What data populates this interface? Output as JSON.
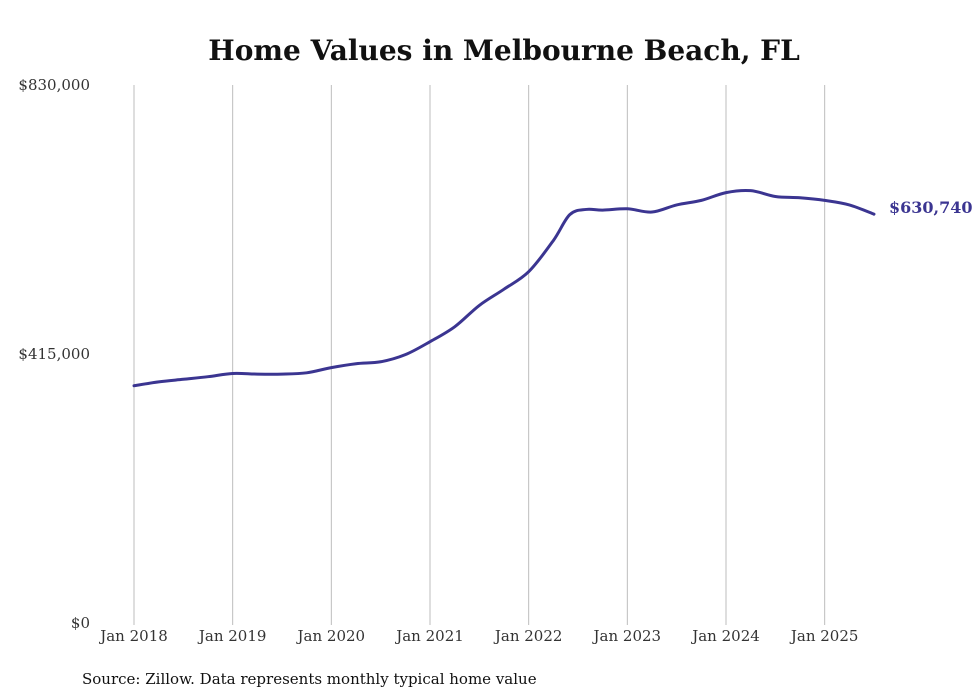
{
  "chart_data": {
    "type": "line",
    "title": "Home Values in Melbourne Beach, FL",
    "xlabel": "",
    "ylabel": "",
    "ylim": [
      0,
      830000
    ],
    "y_ticks": [
      0,
      415000,
      830000
    ],
    "y_tick_labels": [
      "$0",
      "$415,000",
      "$830,000"
    ],
    "x_tick_labels": [
      "Jan 2018",
      "Jan 2019",
      "Jan 2020",
      "Jan 2021",
      "Jan 2022",
      "Jan 2023",
      "Jan 2024",
      "Jan 2025"
    ],
    "x_range": [
      "2018-01",
      "2025-07"
    ],
    "grid": "vertical",
    "legend": "none",
    "series": [
      {
        "color": "#3b3591",
        "end_label": "$630,740",
        "points": [
          {
            "x": "2018-01",
            "y": 366000
          },
          {
            "x": "2018-04",
            "y": 372000
          },
          {
            "x": "2018-07",
            "y": 376000
          },
          {
            "x": "2018-10",
            "y": 380000
          },
          {
            "x": "2019-01",
            "y": 385000
          },
          {
            "x": "2019-04",
            "y": 384000
          },
          {
            "x": "2019-07",
            "y": 384000
          },
          {
            "x": "2019-10",
            "y": 386000
          },
          {
            "x": "2020-01",
            "y": 394000
          },
          {
            "x": "2020-04",
            "y": 400000
          },
          {
            "x": "2020-07",
            "y": 403000
          },
          {
            "x": "2020-10",
            "y": 414000
          },
          {
            "x": "2021-01",
            "y": 434000
          },
          {
            "x": "2021-04",
            "y": 457000
          },
          {
            "x": "2021-07",
            "y": 490000
          },
          {
            "x": "2021-10",
            "y": 515000
          },
          {
            "x": "2022-01",
            "y": 542000
          },
          {
            "x": "2022-04",
            "y": 590000
          },
          {
            "x": "2022-06",
            "y": 630000
          },
          {
            "x": "2022-08",
            "y": 638000
          },
          {
            "x": "2022-10",
            "y": 637000
          },
          {
            "x": "2023-01",
            "y": 639000
          },
          {
            "x": "2023-04",
            "y": 634000
          },
          {
            "x": "2023-07",
            "y": 645000
          },
          {
            "x": "2023-10",
            "y": 652000
          },
          {
            "x": "2024-01",
            "y": 664000
          },
          {
            "x": "2024-04",
            "y": 667000
          },
          {
            "x": "2024-07",
            "y": 658000
          },
          {
            "x": "2024-10",
            "y": 656000
          },
          {
            "x": "2025-01",
            "y": 652000
          },
          {
            "x": "2025-04",
            "y": 645000
          },
          {
            "x": "2025-07",
            "y": 630740
          }
        ]
      }
    ]
  },
  "footer": {
    "source": "Source: Zillow. Data represents monthly typical home value"
  }
}
